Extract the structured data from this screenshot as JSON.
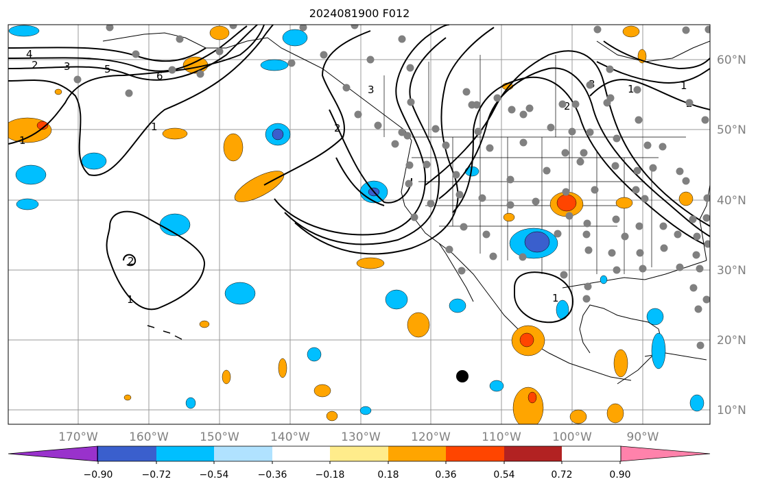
{
  "title": "2024081900 F012",
  "lon_labels": [
    "170°W",
    "160°W",
    "150°W",
    "140°W",
    "130°W",
    "120°W",
    "110°W",
    "100°W",
    "90°W"
  ],
  "lat_labels": [
    "60°N",
    "50°N",
    "40°N",
    "30°N",
    "20°N",
    "10°N"
  ],
  "contour_labels": [
    "4",
    "2",
    "3",
    "5",
    "6",
    "1",
    "1",
    "2",
    "3",
    "1",
    "2",
    "1",
    "2",
    "3",
    "1",
    "1",
    "2"
  ],
  "colorbar": {
    "tick_labels": [
      "−0.90",
      "−0.72",
      "−0.54",
      "−0.36",
      "−0.18",
      "0.18",
      "0.36",
      "0.54",
      "0.72",
      "0.90"
    ],
    "colors": [
      "#9932cc",
      "#00008b",
      "#3a5fcd",
      "#00bfff",
      "#b0e2ff",
      "#ffffff",
      "#ffec8b",
      "#ffa500",
      "#ff4500",
      "#b22222",
      "#ff82ab"
    ]
  },
  "marker": {
    "label": ""
  }
}
